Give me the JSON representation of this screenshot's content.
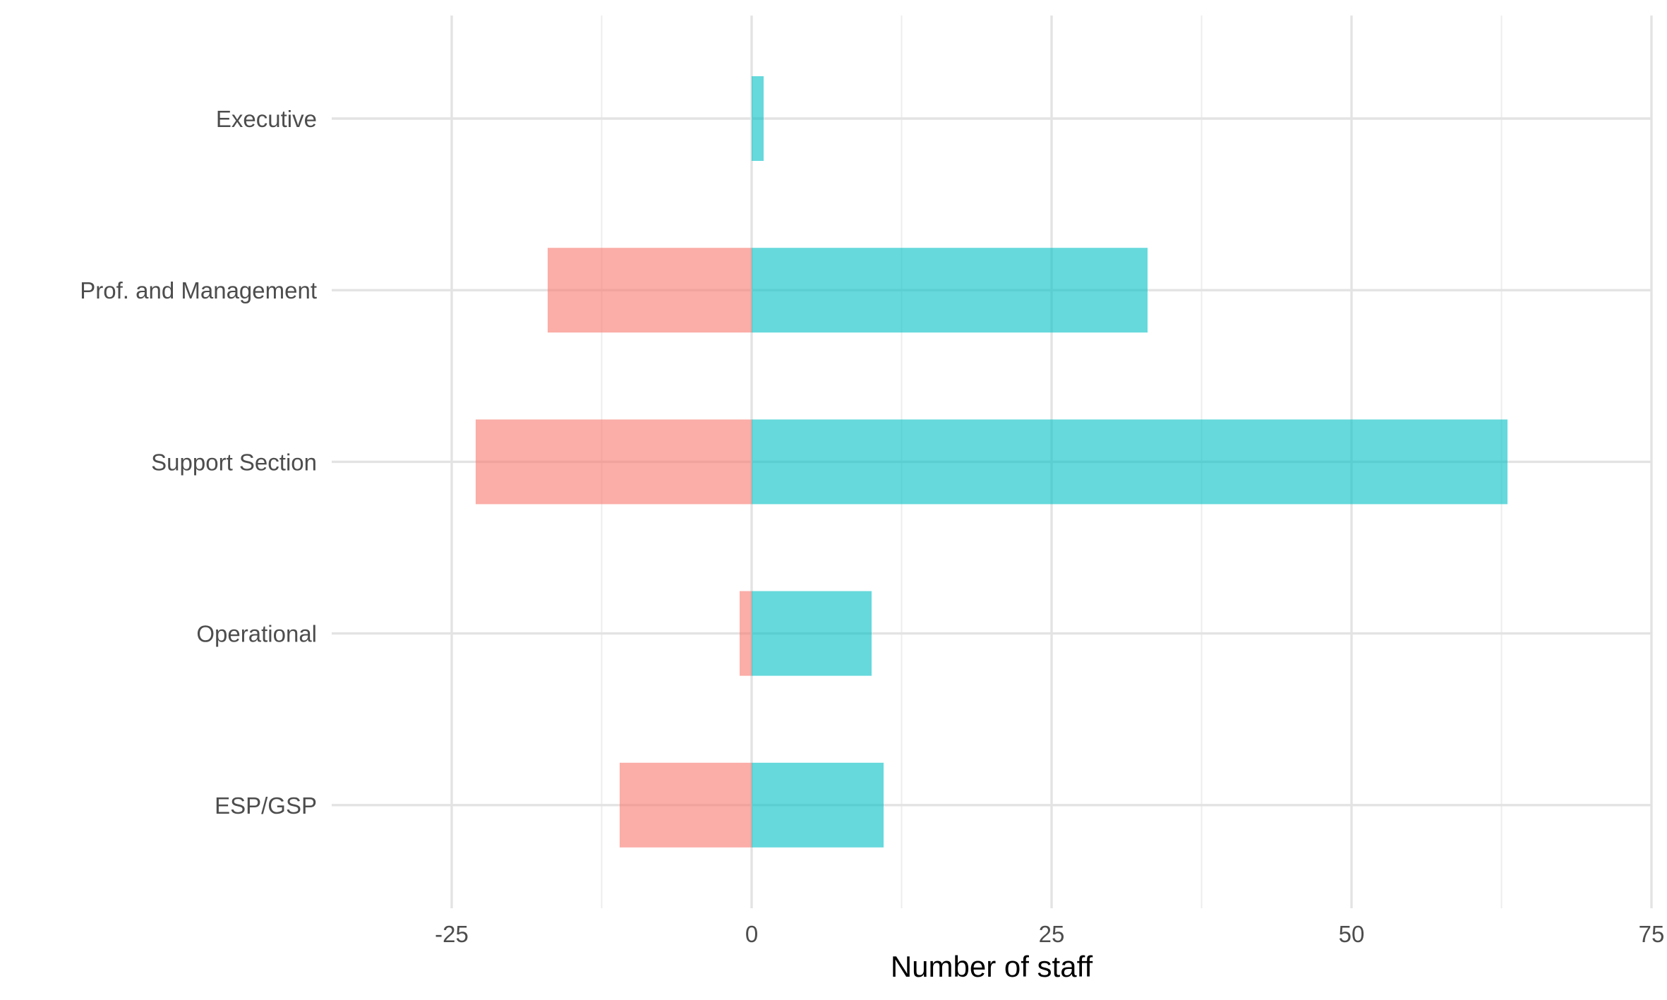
{
  "chart_data": {
    "type": "bar",
    "orientation": "horizontal",
    "stacking": "diverging",
    "categories": [
      "Executive",
      "Prof. and Management",
      "Support Section",
      "Operational",
      "ESP/GSP"
    ],
    "series": [
      {
        "values": [
          0,
          -17,
          -23,
          -1,
          -11
        ],
        "color": "#F8766D"
      },
      {
        "values": [
          1,
          33,
          63,
          10,
          11
        ],
        "color": "#00BFC4"
      }
    ],
    "bar_opacity": 0.6,
    "xlabel": "Number of staff",
    "ylabel": "",
    "xlim": [
      -25,
      75
    ],
    "x_ticks": [
      "-25",
      "0",
      "25",
      "50",
      "75"
    ],
    "grid": true,
    "legend": "none",
    "colors": {
      "grid_major": "#e3e3e3",
      "grid_minor": "#ededed",
      "tick_text": "#4d4d4d",
      "title_text": "#000000"
    }
  }
}
